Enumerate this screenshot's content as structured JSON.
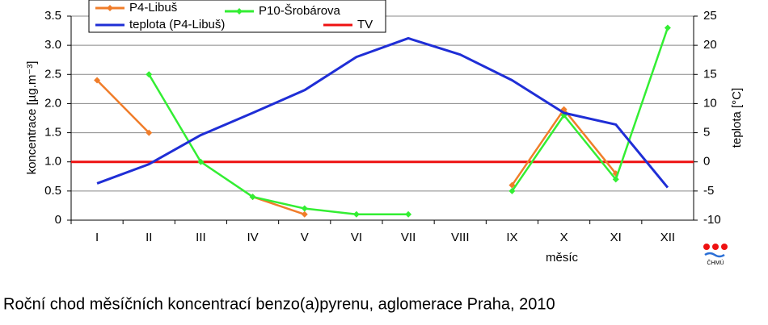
{
  "chart_data": {
    "type": "line",
    "categories": [
      "I",
      "II",
      "III",
      "IV",
      "V",
      "VI",
      "VII",
      "VIII",
      "IX",
      "X",
      "XI",
      "XII"
    ],
    "series": [
      {
        "name": "P4-Libuš",
        "color": "#f07d2a",
        "values": [
          2.4,
          1.5,
          null,
          0.4,
          0.1,
          null,
          null,
          null,
          0.6,
          1.9,
          0.8,
          null
        ]
      },
      {
        "name": "P10-Šrobárova",
        "color": "#33ee33",
        "values": [
          null,
          2.5,
          1.0,
          0.4,
          0.2,
          0.1,
          0.1,
          null,
          0.5,
          1.8,
          0.7,
          3.3
        ]
      },
      {
        "name": "teplota (P4-Libuš)",
        "color": "#1f2ed6",
        "axis": "y2",
        "values": [
          -3.7,
          -0.4,
          4.6,
          8.4,
          12.3,
          18,
          21.2,
          18.4,
          14,
          8.4,
          6.4,
          -4.4
        ]
      }
    ],
    "threshold": {
      "name": "TV",
      "color": "#ee1111",
      "value": 1.0
    },
    "ylim": [
      0,
      3.5
    ],
    "yticks": [
      0,
      0.5,
      {
        "value": 1,
        "label": "1.0"
      },
      1.5,
      {
        "value": 2,
        "label": "2.0"
      },
      2.5,
      {
        "value": 3,
        "label": "3.0"
      },
      3.5
    ],
    "y2lim": [
      -10,
      25
    ],
    "y2ticks": [
      -10,
      -5,
      0,
      5,
      10,
      15,
      20,
      25
    ],
    "ylabel": "koncentrace [µg.m⁻³]",
    "y2label": "teplota [°C]",
    "xlabel": "měsíc",
    "grid": true,
    "caption": "Roční chod měsíčních koncentrací benzo(a)pyrenu, aglomerace Praha, 2010",
    "logo_text": "ČHMÚ"
  }
}
